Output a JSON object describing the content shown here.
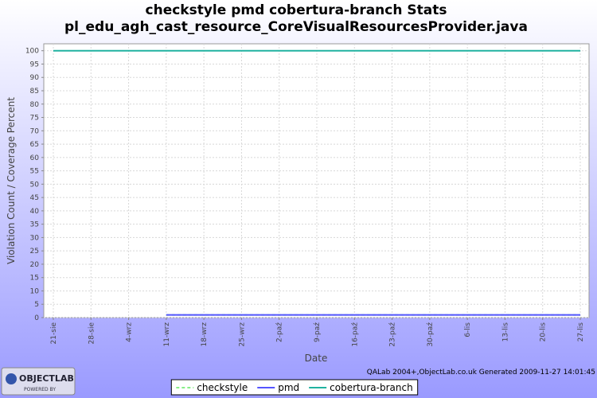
{
  "chart_data": {
    "type": "line",
    "title": "checkstyle pmd cobertura-branch  Stats",
    "subtitle": "pl_edu_agh_cast_resource_CoreVisualResourcesProvider.java",
    "x_label": "Date",
    "y_label": "Violation Count / Coverage Percent",
    "categories": [
      "21-sie",
      "28-sie",
      "4-wrz",
      "11-wrz",
      "18-wrz",
      "25-wrz",
      "2-paź",
      "9-paź",
      "16-paź",
      "23-paź",
      "30-paź",
      "6-lis",
      "13-lis",
      "20-lis",
      "27-lis"
    ],
    "series": [
      {
        "name": "checkstyle",
        "color": "#88ee88",
        "dashed": true,
        "values": [
          null,
          null,
          null,
          1,
          1,
          1,
          1,
          1,
          1,
          1,
          1,
          1,
          1,
          1,
          1
        ]
      },
      {
        "name": "pmd",
        "color": "#5555ff",
        "dashed": false,
        "values": [
          null,
          null,
          null,
          1,
          1,
          1,
          1,
          1,
          1,
          1,
          1,
          1,
          1,
          1,
          1
        ]
      },
      {
        "name": "cobertura-branch",
        "color": "#20b2a0",
        "dashed": false,
        "values": [
          100,
          100,
          100,
          100,
          100,
          100,
          100,
          100,
          100,
          100,
          100,
          100,
          100,
          100,
          100
        ]
      }
    ],
    "ylim": [
      0,
      102.6
    ],
    "yticks": [
      0,
      5,
      10,
      15,
      20,
      25,
      30,
      35,
      40,
      45,
      50,
      55,
      60,
      65,
      70,
      75,
      80,
      85,
      90,
      95,
      100
    ],
    "grid": true,
    "legend": "bottom",
    "footer": "QALab 2004+,ObjectLab.co.uk Generated 2009-11-27 14:01:45",
    "logo": {
      "name": "OBJECTLAB",
      "tagline": "POWERED BY"
    }
  }
}
